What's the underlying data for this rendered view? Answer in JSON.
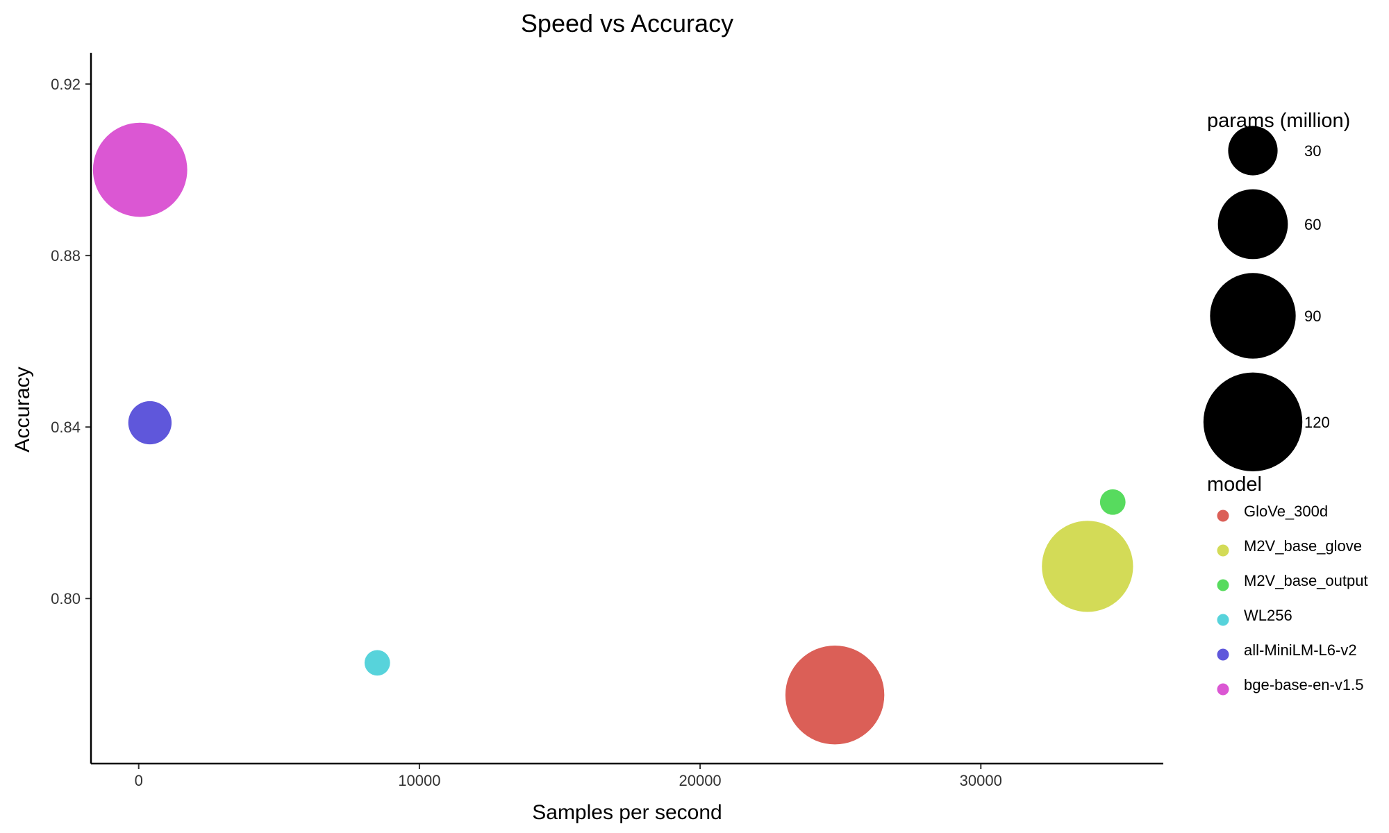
{
  "chart_data": {
    "type": "scatter",
    "title": "Speed vs Accuracy",
    "xlabel": "Samples per second",
    "ylabel": "Accuracy",
    "xlim": [
      -1700,
      36500
    ],
    "ylim": [
      0.7615,
      0.9273
    ],
    "xticks": [
      0,
      10000,
      20000,
      30000
    ],
    "xtick_labels": [
      "0",
      "10000",
      "20000",
      "30000"
    ],
    "yticks": [
      0.8,
      0.84,
      0.88,
      0.92
    ],
    "ytick_labels": [
      "0.80",
      "0.84",
      "0.88",
      "0.92"
    ],
    "grid": false,
    "size_legend": {
      "title": "params (million)",
      "entries": [
        {
          "label": "30",
          "value": 30
        },
        {
          "label": "60",
          "value": 60
        },
        {
          "label": "90",
          "value": 90
        },
        {
          "label": "120",
          "value": 120
        }
      ]
    },
    "color_legend": {
      "title": "model",
      "entries": [
        {
          "label": "GloVe_300d",
          "color": "#DB5F57"
        },
        {
          "label": "M2V_base_glove",
          "color": "#D3DB57"
        },
        {
          "label": "M2V_base_output",
          "color": "#57DB5E"
        },
        {
          "label": "WL256",
          "color": "#57D3DB"
        },
        {
          "label": "all-MiniLM-L6-v2",
          "color": "#5F57DB"
        },
        {
          "label": "bge-base-en-v1.5",
          "color": "#DB57D3"
        }
      ]
    },
    "points": [
      {
        "model": "GloVe_300d",
        "x": 24800,
        "y": 0.7775,
        "params": 120
      },
      {
        "model": "M2V_base_glove",
        "x": 33800,
        "y": 0.8075,
        "params": 102
      },
      {
        "model": "M2V_base_output",
        "x": 34700,
        "y": 0.8225,
        "params": 8
      },
      {
        "model": "WL256",
        "x": 8500,
        "y": 0.785,
        "params": 8
      },
      {
        "model": "all-MiniLM-L6-v2",
        "x": 400,
        "y": 0.841,
        "params": 23
      },
      {
        "model": "bge-base-en-v1.5",
        "x": 50,
        "y": 0.9,
        "params": 109
      }
    ]
  }
}
